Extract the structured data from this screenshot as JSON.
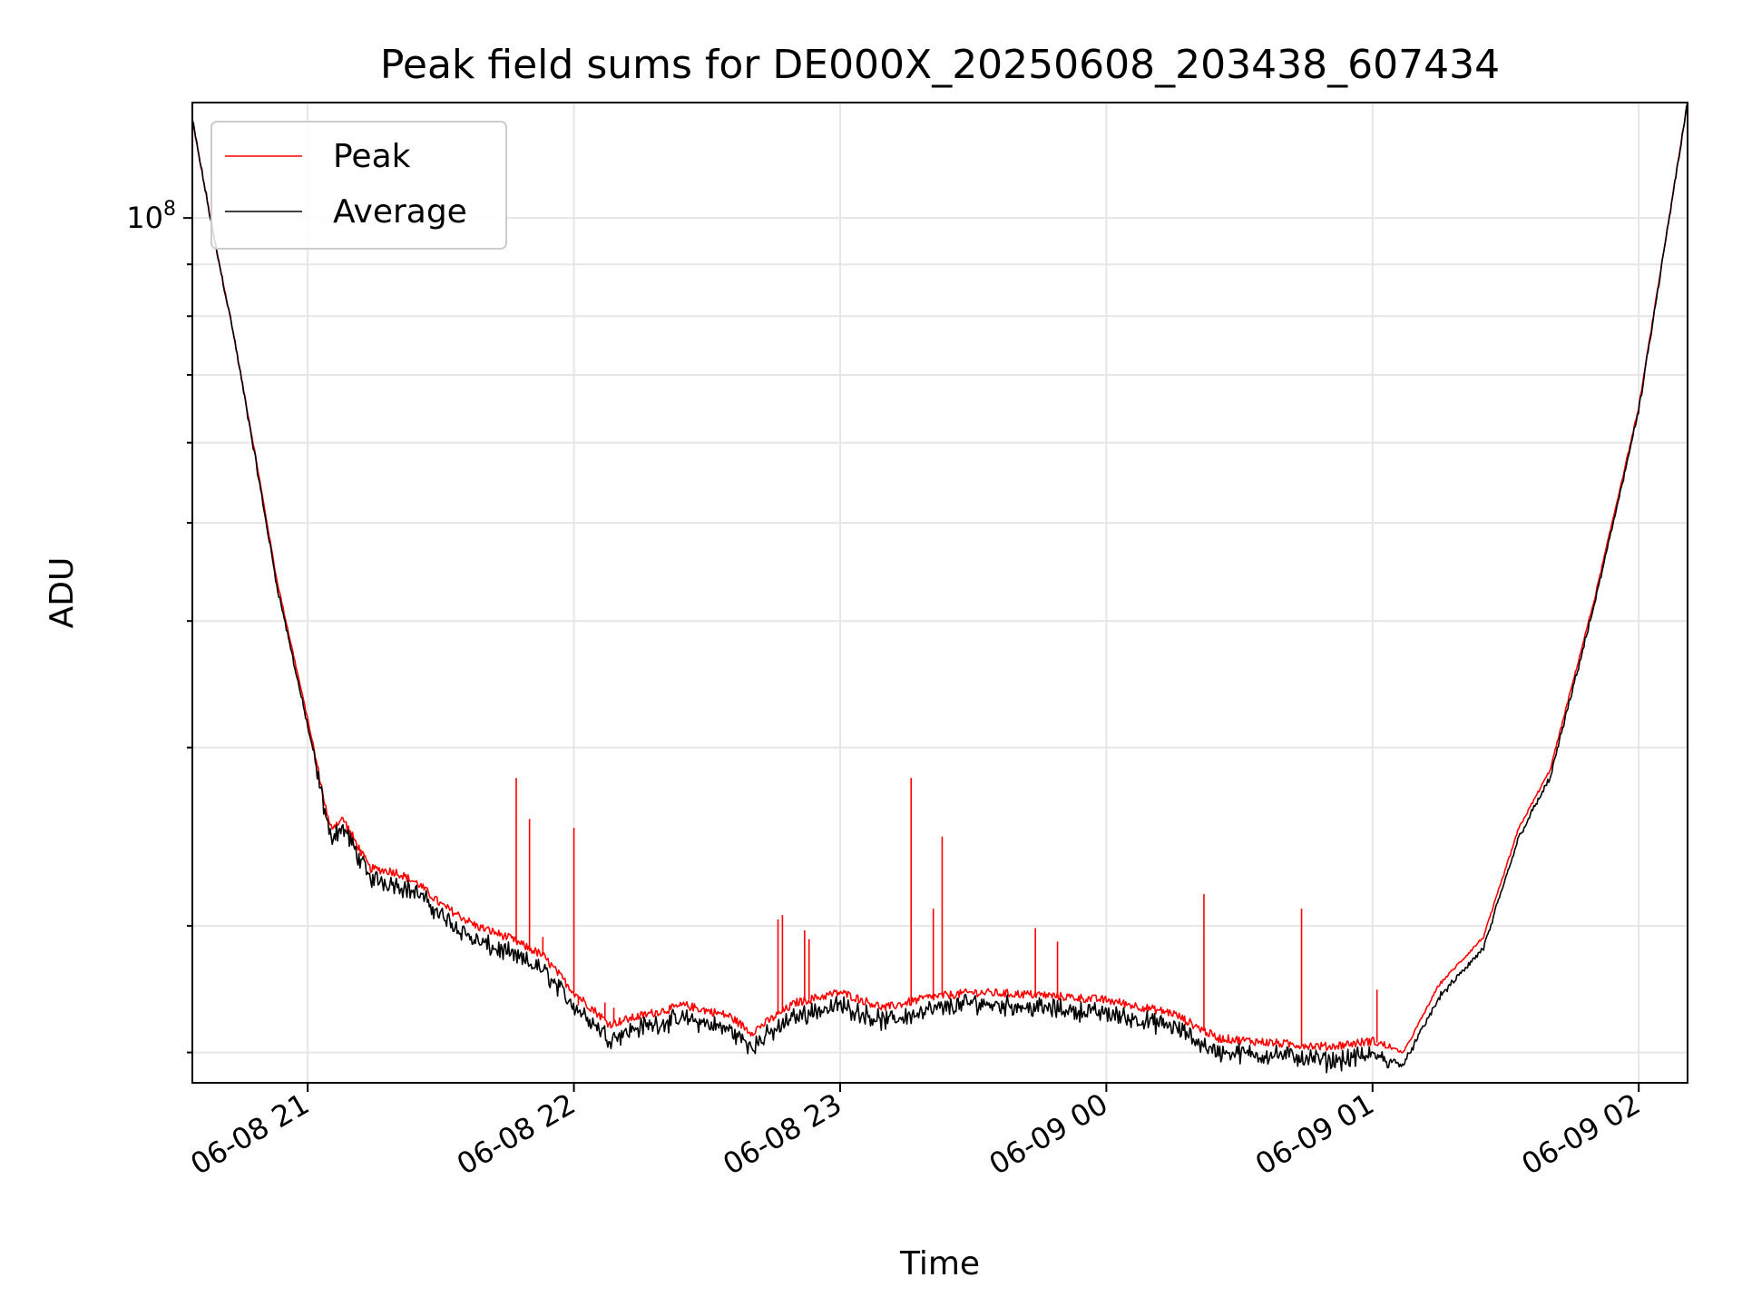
{
  "chart_data": {
    "type": "line",
    "title": "Peak field sums for DE000X_20250608_203438_607434",
    "xlabel": "Time",
    "ylabel": "ADU",
    "yscale": "log",
    "xlim": [
      "2025-06-08 20:34",
      "2025-06-09 02:11"
    ],
    "ylim": [
      14000000,
      130000000
    ],
    "x_ticks": [
      "06-08 21",
      "06-08 22",
      "06-08 23",
      "06-09 00",
      "06-09 01",
      "06-09 02"
    ],
    "y_ticks": [
      "10^8"
    ],
    "grid": true,
    "legend_position": "upper-left",
    "colors": {
      "peak": "#ff0000",
      "average": "#000000"
    },
    "x": [
      "2025-06-08 20:34",
      "2025-06-08 20:39",
      "2025-06-08 20:43",
      "2025-06-08 20:48",
      "2025-06-08 20:53",
      "2025-06-08 21:00",
      "2025-06-08 21:05",
      "2025-06-08 21:08",
      "2025-06-08 21:14",
      "2025-06-08 21:20",
      "2025-06-08 21:25",
      "2025-06-08 21:30",
      "2025-06-08 21:38",
      "2025-06-08 21:45",
      "2025-06-08 21:53",
      "2025-06-08 22:00",
      "2025-06-08 22:08",
      "2025-06-08 22:15",
      "2025-06-08 22:25",
      "2025-06-08 22:35",
      "2025-06-08 22:40",
      "2025-06-08 22:50",
      "2025-06-08 23:00",
      "2025-06-08 23:10",
      "2025-06-08 23:20",
      "2025-06-08 23:30",
      "2025-06-08 23:45",
      "2025-06-09 00:00",
      "2025-06-09 00:15",
      "2025-06-09 00:25",
      "2025-06-09 00:40",
      "2025-06-09 00:50",
      "2025-06-09 01:00",
      "2025-06-09 01:07",
      "2025-06-09 01:15",
      "2025-06-09 01:25",
      "2025-06-09 01:33",
      "2025-06-09 01:40",
      "2025-06-09 01:50",
      "2025-06-09 02:00",
      "2025-06-09 02:11"
    ],
    "series": [
      {
        "name": "Peak",
        "values": [
          125000000,
          95000000,
          78000000,
          59000000,
          44000000,
          32000000,
          25000000,
          25500000,
          22800000,
          22600000,
          22000000,
          21000000,
          20000000,
          19500000,
          18700000,
          17200000,
          16000000,
          16300000,
          16700000,
          16300000,
          15700000,
          16800000,
          17200000,
          16600000,
          17000000,
          17200000,
          17100000,
          16900000,
          16400000,
          15500000,
          15300000,
          15200000,
          15400000,
          15000000,
          17500000,
          19500000,
          25000000,
          28500000,
          42000000,
          65000000,
          130000000
        ]
      },
      {
        "name": "Average",
        "values": [
          125000000,
          95000000,
          78000000,
          58500000,
          43500000,
          31500000,
          24500000,
          25000000,
          22300000,
          22000000,
          21500000,
          20500000,
          19300000,
          18800000,
          18100000,
          16700000,
          15500000,
          15900000,
          16200000,
          15800000,
          15200000,
          16300000,
          16700000,
          16100000,
          16500000,
          16800000,
          16600000,
          16400000,
          15900000,
          15000000,
          14900000,
          14700000,
          14900000,
          14600000,
          17000000,
          19000000,
          24500000,
          28000000,
          41500000,
          64500000,
          130000000
        ]
      }
    ],
    "spikes": [
      {
        "series": "Peak",
        "x": "2025-06-08 21:10",
        "y": 24000000
      },
      {
        "series": "Peak",
        "x": "2025-06-08 21:12",
        "y": 23800000
      },
      {
        "series": "Peak",
        "x": "2025-06-08 21:47",
        "y": 28000000
      },
      {
        "series": "Peak",
        "x": "2025-06-08 21:50",
        "y": 25500000
      },
      {
        "series": "Peak",
        "x": "2025-06-08 21:53",
        "y": 19500000
      },
      {
        "series": "Peak",
        "x": "2025-06-08 22:00",
        "y": 25000000
      },
      {
        "series": "Peak",
        "x": "2025-06-08 22:01",
        "y": 16700000
      },
      {
        "series": "Peak",
        "x": "2025-06-08 22:07",
        "y": 16800000
      },
      {
        "series": "Peak",
        "x": "2025-06-08 22:09",
        "y": 16600000
      },
      {
        "series": "Peak",
        "x": "2025-06-08 22:27",
        "y": 16700000
      },
      {
        "series": "Peak",
        "x": "2025-06-08 22:46",
        "y": 20300000
      },
      {
        "series": "Peak",
        "x": "2025-06-08 22:47",
        "y": 20500000
      },
      {
        "series": "Peak",
        "x": "2025-06-08 22:52",
        "y": 19800000
      },
      {
        "series": "Peak",
        "x": "2025-06-08 22:53",
        "y": 19400000
      },
      {
        "series": "Peak",
        "x": "2025-06-08 23:16",
        "y": 28000000
      },
      {
        "series": "Peak",
        "x": "2025-06-08 23:21",
        "y": 20800000
      },
      {
        "series": "Peak",
        "x": "2025-06-08 23:23",
        "y": 24500000
      },
      {
        "series": "Peak",
        "x": "2025-06-08 23:44",
        "y": 19900000
      },
      {
        "series": "Peak",
        "x": "2025-06-08 23:49",
        "y": 19300000
      },
      {
        "series": "Peak",
        "x": "2025-06-09 00:22",
        "y": 21500000
      },
      {
        "series": "Peak",
        "x": "2025-06-09 00:44",
        "y": 20800000
      },
      {
        "series": "Peak",
        "x": "2025-06-09 01:01",
        "y": 17300000
      }
    ]
  }
}
